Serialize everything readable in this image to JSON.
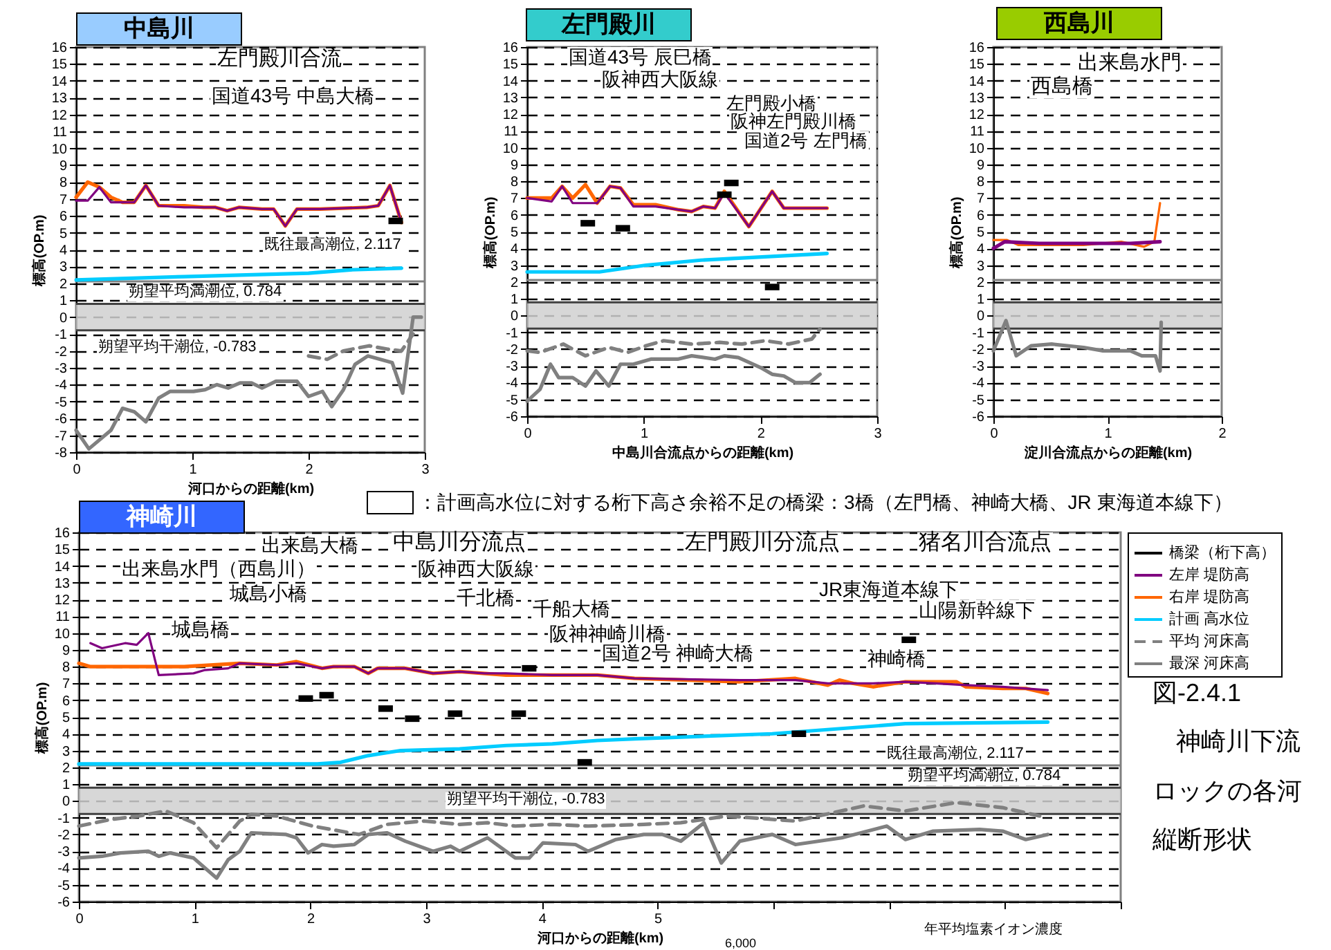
{
  "chart_data": [
    {
      "type": "line",
      "title": "中島川",
      "xlabel": "河口からの距離(km)",
      "ylabel": "標高(OP.m)",
      "xlim": [
        0,
        3
      ],
      "xticks": [
        0,
        1,
        2,
        3
      ],
      "ylim": [
        -8,
        16
      ],
      "yticks": [
        -8,
        -7,
        -6,
        -5,
        -4,
        -3,
        -2,
        -1,
        0,
        1,
        2,
        3,
        4,
        5,
        6,
        7,
        8,
        9,
        10,
        11,
        12,
        13,
        14,
        15,
        16
      ],
      "grid": "y",
      "series": [
        {
          "type": "scatter",
          "color": "#000000",
          "x": [
            2.75
          ],
          "values": [
            5.7
          ]
        },
        {
          "color": "#800080",
          "x": [
            0,
            0.1,
            0.2,
            0.3,
            0.4,
            0.5,
            0.6,
            0.71,
            0.93,
            1.1,
            1.2,
            1.3,
            1.4,
            1.6,
            1.7,
            1.8,
            1.9,
            2.1,
            2.5,
            2.6,
            2.7,
            2.8
          ],
          "values": [
            6.9,
            6.9,
            7.7,
            6.8,
            6.8,
            6.8,
            7.8,
            6.6,
            6.5,
            6.5,
            6.5,
            6.3,
            6.5,
            6.4,
            6.4,
            5.4,
            6.4,
            6.4,
            6.5,
            6.6,
            7.8,
            5.6
          ]
        },
        {
          "color": "#ff6600",
          "x": [
            0,
            0.1,
            0.2,
            0.3,
            0.4,
            0.5,
            0.6,
            0.71,
            0.93,
            1.1,
            1.2,
            1.3,
            1.4,
            1.6,
            1.7,
            1.8,
            1.9,
            2.1,
            2.5,
            2.6,
            2.7,
            2.8
          ],
          "values": [
            7.1,
            8.0,
            7.7,
            7.1,
            6.8,
            6.8,
            7.8,
            6.6,
            6.6,
            6.5,
            6.5,
            6.3,
            6.5,
            6.4,
            6.4,
            5.4,
            6.4,
            6.4,
            6.5,
            6.6,
            7.8,
            5.6
          ]
        },
        {
          "color": "#00ccff",
          "x": [
            0,
            0.93,
            2.0,
            2.36,
            2.8
          ],
          "values": [
            2.2,
            2.4,
            2.6,
            2.8,
            2.9
          ]
        },
        {
          "color": "#808080",
          "line_style": "dashed",
          "x": [
            2.0,
            2.16,
            2.3,
            2.52,
            2.68,
            2.8,
            2.9
          ],
          "values": [
            -2.3,
            -2.5,
            -2.0,
            -1.7,
            -1.9,
            -2.0,
            -1.0
          ]
        },
        {
          "color": "#808080",
          "x": [
            0,
            0.11,
            0.3,
            0.4,
            0.5,
            0.6,
            0.71,
            0.81,
            1.01,
            1.11,
            1.21,
            1.31,
            1.41,
            1.51,
            1.6,
            1.72,
            1.9,
            2.0,
            2.12,
            2.2,
            2.3,
            2.4,
            2.51,
            2.72,
            2.81,
            2.9,
            2.97
          ],
          "values": [
            -6.7,
            -7.8,
            -6.7,
            -5.4,
            -5.6,
            -6.2,
            -4.8,
            -4.4,
            -4.4,
            -4.3,
            -4.0,
            -4.2,
            -3.9,
            -3.9,
            -4.2,
            -3.8,
            -3.8,
            -4.7,
            -4.4,
            -5.3,
            -4.3,
            -2.8,
            -2.3,
            -2.7,
            -4.5,
            0.0,
            0.0
          ]
        }
      ],
      "ref_lines": [
        {
          "axis": "y",
          "value": 2.117,
          "label": "既往最高潮位, 2.117",
          "color": "#808080"
        },
        {
          "axis": "y",
          "value": 0.784,
          "label": "朔望平均満潮位, 0.784",
          "color": "#404040"
        },
        {
          "axis": "y",
          "value": -0.783,
          "label": "朔望平均干潮位, -0.783",
          "color": "#404040"
        }
      ],
      "bands": [
        {
          "axis": "y",
          "from": -0.783,
          "to": 0.784,
          "color": "#d0d0d0"
        }
      ],
      "annotations": [
        "左門殿川合流",
        "国道43号 中島大橋"
      ]
    },
    {
      "type": "line",
      "title": "左門殿川",
      "xlabel": "中島川合流点からの距離(km)",
      "ylabel": "標高(OP.m)",
      "xlim": [
        0,
        3
      ],
      "xticks": [
        0,
        1,
        2,
        3
      ],
      "ylim": [
        -6,
        16
      ],
      "yticks": [
        -6,
        -5,
        -4,
        -3,
        -2,
        -1,
        0,
        1,
        2,
        3,
        4,
        5,
        6,
        7,
        8,
        9,
        10,
        11,
        12,
        13,
        14,
        15,
        16
      ],
      "grid": "y",
      "series": [
        {
          "type": "scatter",
          "color": "#000000",
          "x": [
            0.52,
            0.82,
            1.69,
            1.75,
            2.1
          ],
          "values": [
            5.5,
            5.2,
            7.2,
            7.9,
            1.7
          ]
        },
        {
          "color": "#800080",
          "x": [
            0,
            0.21,
            0.3,
            0.39,
            0.5,
            0.6,
            0.71,
            0.8,
            0.91,
            1.1,
            1.3,
            1.41,
            1.51,
            1.61,
            1.69,
            1.9,
            2.1,
            2.2,
            2.57
          ],
          "values": [
            7.0,
            6.8,
            7.7,
            6.7,
            6.7,
            6.7,
            7.7,
            7.6,
            6.5,
            6.5,
            6.3,
            6.2,
            6.5,
            6.4,
            7.3,
            5.3,
            7.4,
            6.4,
            6.4
          ]
        },
        {
          "color": "#ff6600",
          "x": [
            0,
            0.21,
            0.3,
            0.39,
            0.5,
            0.6,
            0.71,
            0.8,
            0.91,
            1.1,
            1.3,
            1.41,
            1.51,
            1.61,
            1.69,
            1.9,
            2.1,
            2.2,
            2.57
          ],
          "values": [
            7.0,
            7.0,
            7.7,
            7.0,
            7.8,
            6.7,
            7.7,
            7.6,
            6.6,
            6.6,
            6.3,
            6.2,
            6.5,
            6.4,
            7.4,
            5.3,
            7.4,
            6.4,
            6.4
          ]
        },
        {
          "color": "#00ccff",
          "x": [
            0,
            0.62,
            1.02,
            1.49,
            2.04,
            2.57
          ],
          "values": [
            2.6,
            2.6,
            3.0,
            3.3,
            3.5,
            3.7
          ]
        },
        {
          "color": "#808080",
          "line_style": "dashed",
          "x": [
            0,
            0.11,
            0.31,
            0.5,
            0.7,
            0.86,
            1.02,
            1.17,
            1.41,
            1.65,
            1.84,
            2.04,
            2.24,
            2.44,
            2.51
          ],
          "values": [
            -2.1,
            -2.2,
            -1.7,
            -2.4,
            -1.9,
            -2.2,
            -1.8,
            -1.5,
            -1.7,
            -1.6,
            -1.7,
            -1.5,
            -1.7,
            -1.4,
            -0.8
          ]
        },
        {
          "color": "#808080",
          "x": [
            0,
            0.11,
            0.2,
            0.27,
            0.39,
            0.5,
            0.59,
            0.7,
            0.8,
            0.91,
            1.06,
            1.29,
            1.41,
            1.61,
            1.69,
            1.81,
            2.0,
            2.1,
            2.2,
            2.3,
            2.42,
            2.51
          ],
          "values": [
            -5.1,
            -4.4,
            -2.9,
            -3.7,
            -3.7,
            -4.2,
            -3.3,
            -4.2,
            -2.9,
            -2.9,
            -2.6,
            -2.6,
            -2.4,
            -2.6,
            -2.4,
            -2.5,
            -3.1,
            -3.5,
            -3.6,
            -4.0,
            -4.0,
            -3.5
          ]
        }
      ],
      "ref_lines": [
        {
          "axis": "y",
          "value": 2.117,
          "color": "#808080"
        },
        {
          "axis": "y",
          "value": 0.784,
          "color": "#404040"
        },
        {
          "axis": "y",
          "value": -0.783,
          "color": "#404040"
        }
      ],
      "bands": [
        {
          "axis": "y",
          "from": -0.783,
          "to": 0.784,
          "color": "#d0d0d0"
        }
      ],
      "annotations": [
        "国道43号 辰巳橋",
        "阪神西大阪線",
        "左門殿小橋",
        "阪神左門殿川橋",
        "国道2号 左門橋"
      ]
    },
    {
      "type": "line",
      "title": "西島川",
      "xlabel": "淀川合流点からの距離(km)",
      "ylabel": "標高(OP.m)",
      "xlim": [
        0,
        2
      ],
      "xticks": [
        0,
        1,
        2
      ],
      "ylim": [
        -6,
        16
      ],
      "yticks": [
        -6,
        -5,
        -4,
        -3,
        -2,
        -1,
        0,
        1,
        2,
        3,
        4,
        5,
        6,
        7,
        8,
        9,
        10,
        11,
        12,
        13,
        14,
        15,
        16
      ],
      "grid": "y",
      "series": [
        {
          "color": "#800080",
          "x": [
            0,
            0.1,
            0.4,
            0.8,
            1.2,
            1.46
          ],
          "values": [
            4.0,
            4.4,
            4.3,
            4.3,
            4.3,
            4.4
          ]
        },
        {
          "color": "#ff6600",
          "x": [
            0,
            0.12,
            0.22,
            0.79,
            1.12,
            1.32,
            1.41,
            1.46
          ],
          "values": [
            4.5,
            4.5,
            4.2,
            4.2,
            4.4,
            4.1,
            4.4,
            6.7
          ]
        },
        {
          "color": "#808080",
          "x": [
            0,
            0.11,
            0.2,
            0.33,
            0.51,
            0.79,
            0.96,
            1.2,
            1.3,
            1.42,
            1.46,
            1.47
          ],
          "values": [
            -2.1,
            -0.3,
            -2.4,
            -1.8,
            -1.7,
            -1.9,
            -2.1,
            -2.1,
            -2.4,
            -2.4,
            -3.3,
            -0.4
          ]
        }
      ],
      "ref_lines": [
        {
          "axis": "y",
          "value": 2.117,
          "color": "#808080"
        },
        {
          "axis": "y",
          "value": 0.784,
          "color": "#404040"
        },
        {
          "axis": "y",
          "value": -0.783,
          "color": "#404040"
        }
      ],
      "bands": [
        {
          "axis": "y",
          "from": -0.783,
          "to": 0.784,
          "color": "#d0d0d0"
        }
      ],
      "annotations": [
        "出来島水門",
        "西島橋"
      ]
    },
    {
      "type": "line",
      "title": "神崎川",
      "xlabel": "河口からの距離(km)",
      "ylabel": "標高(OP.m)",
      "xlim": [
        0,
        9
      ],
      "xticks": [
        0,
        1,
        2,
        3,
        4,
        5,
        {
          "value": 6,
          "label": null
        },
        {
          "value": 7,
          "label": null
        },
        {
          "value": 8,
          "label": null
        },
        {
          "value": 9,
          "label": null
        }
      ],
      "ylim": [
        -6,
        16
      ],
      "yticks": [
        -6,
        -5,
        -4,
        -3,
        -2,
        -1,
        0,
        1,
        2,
        3,
        4,
        5,
        6,
        7,
        8,
        9,
        10,
        11,
        12,
        13,
        14,
        15,
        16
      ],
      "grid": "y",
      "legend": "right",
      "series": [
        {
          "type": "scatter",
          "name": "橋梁（桁下高）",
          "color": "#000000",
          "x": [
            1.96,
            2.14,
            2.65,
            2.88,
            3.25,
            3.8,
            3.89,
            4.37,
            6.22,
            7.17
          ],
          "values": [
            6.1,
            6.3,
            5.5,
            4.9,
            5.2,
            5.2,
            7.9,
            2.3,
            4.0,
            9.6
          ]
        },
        {
          "name": "左岸 堤防高",
          "color": "#800080",
          "x": [
            0.1,
            0.2,
            0.4,
            0.5,
            0.6,
            0.69,
            0.99,
            1.09,
            1.29,
            1.39,
            1.71,
            1.88,
            2.1,
            2.2,
            2.38,
            2.5,
            2.58,
            2.82,
            3.06,
            3.29,
            3.5,
            3.69,
            4.09,
            4.48,
            4.8,
            5.71,
            6.19,
            6.47,
            6.86,
            7.14,
            7.4,
            7.66,
            7.98,
            8.37
          ],
          "values": [
            9.4,
            9.1,
            9.4,
            9.3,
            10.0,
            7.5,
            7.6,
            7.8,
            7.9,
            8.2,
            8.1,
            8.2,
            7.9,
            8.0,
            8.0,
            7.6,
            7.9,
            7.9,
            7.6,
            7.7,
            7.6,
            7.6,
            7.5,
            7.5,
            7.3,
            7.2,
            7.2,
            7.0,
            7.0,
            7.1,
            7.0,
            6.9,
            6.8,
            6.6
          ]
        },
        {
          "name": "右岸 堤防高",
          "color": "#ff6600",
          "x": [
            0,
            0.1,
            0.91,
            1.39,
            1.71,
            1.88,
            2.1,
            2.2,
            2.38,
            2.5,
            2.58,
            2.82,
            3.06,
            3.29,
            3.69,
            4.09,
            4.48,
            4.8,
            5.71,
            6.19,
            6.47,
            6.57,
            6.69,
            6.86,
            7.14,
            7.58,
            7.66,
            7.98,
            8.18,
            8.37
          ],
          "values": [
            8.2,
            8.0,
            8.0,
            8.2,
            8.1,
            8.3,
            7.9,
            8.0,
            8.0,
            7.6,
            7.9,
            7.9,
            7.6,
            7.7,
            7.5,
            7.5,
            7.5,
            7.3,
            7.1,
            7.3,
            6.9,
            7.2,
            7.0,
            6.8,
            7.1,
            7.1,
            6.8,
            6.7,
            6.7,
            6.4
          ]
        },
        {
          "name": "計画 高水位",
          "color": "#00ccff",
          "x": [
            0,
            2.06,
            2.26,
            2.5,
            2.78,
            3.29,
            3.69,
            4.09,
            4.48,
            4.8,
            5.99,
            7.14,
            8.37
          ],
          "values": [
            2.2,
            2.2,
            2.3,
            2.7,
            3.0,
            3.1,
            3.3,
            3.4,
            3.6,
            3.7,
            4.0,
            4.6,
            4.7
          ]
        },
        {
          "name": "平均 河床高",
          "color": "#808080",
          "line_style": "dashed",
          "x": [
            0,
            0.28,
            0.52,
            0.75,
            0.99,
            1.19,
            1.39,
            1.49,
            1.71,
            2.02,
            2.42,
            2.66,
            2.98,
            3.29,
            3.53,
            3.77,
            4.09,
            4.4,
            4.88,
            5.2,
            5.6,
            6.19,
            6.78,
            7.14,
            7.58,
            7.98,
            8.3
          ],
          "values": [
            -1.5,
            -1.1,
            -0.9,
            -0.6,
            -1.3,
            -2.8,
            -1.2,
            -0.8,
            -0.9,
            -1.5,
            -2.0,
            -1.4,
            -1.2,
            -1.4,
            -1.3,
            -1.5,
            -1.4,
            -1.5,
            -1.4,
            -1.3,
            -0.9,
            -1.2,
            -0.3,
            -0.6,
            -0.1,
            -0.4,
            -0.9
          ]
        },
        {
          "name": "最深 河床高",
          "color": "#808080",
          "x": [
            0,
            0.2,
            0.36,
            0.6,
            0.69,
            0.79,
            0.99,
            1.19,
            1.29,
            1.39,
            1.49,
            1.79,
            1.88,
            1.98,
            2.1,
            2.2,
            2.38,
            2.5,
            2.66,
            2.82,
            3.06,
            3.21,
            3.29,
            3.53,
            3.77,
            3.89,
            4.01,
            4.29,
            4.4,
            4.64,
            4.88,
            5.04,
            5.2,
            5.4,
            5.55,
            5.71,
            5.99,
            6.19,
            6.59,
            6.98,
            7.14,
            7.38,
            7.78,
            7.98,
            8.18,
            8.37
          ],
          "values": [
            -3.4,
            -3.3,
            -3.1,
            -3.0,
            -3.3,
            -3.1,
            -3.4,
            -4.6,
            -3.5,
            -3.0,
            -1.9,
            -2.0,
            -2.2,
            -3.1,
            -2.6,
            -2.7,
            -2.6,
            -2.0,
            -1.9,
            -2.4,
            -3.0,
            -2.7,
            -3.0,
            -2.2,
            -3.4,
            -3.4,
            -2.5,
            -2.6,
            -3.0,
            -2.3,
            -2.0,
            -2.0,
            -2.4,
            -1.3,
            -3.7,
            -2.4,
            -2.0,
            -2.6,
            -2.2,
            -1.5,
            -2.3,
            -1.8,
            -1.7,
            -1.8,
            -2.3,
            -2.0
          ]
        }
      ],
      "ref_lines": [
        {
          "axis": "y",
          "value": 2.117,
          "label": "既往最高潮位, 2.117",
          "color": "#808080"
        },
        {
          "axis": "y",
          "value": 0.784,
          "label": "朔望平均満潮位, 0.784",
          "color": "#404040"
        },
        {
          "axis": "y",
          "value": -0.783,
          "label": "朔望平均干潮位, -0.783",
          "color": "#404040"
        }
      ],
      "bands": [
        {
          "axis": "y",
          "from": -0.783,
          "to": 0.784,
          "color": "#d0d0d0"
        }
      ],
      "annotations": [
        "：計画高水位に対する桁下高さ余裕不足の橋梁：3橋（左門橋、神崎大橋、JR 東海道本線下）",
        "図-2.4.1",
        "神崎川下流",
        "ロックの各河",
        "縦断形状",
        "年平均塩素イオン濃度",
        "6,000",
        "出来島大橋",
        "中島川分流点",
        "出来島水門（西島川）",
        "阪神西大阪線",
        "城島小橋",
        "千北橋",
        "千船大橋",
        "城島橋",
        "阪神神崎川橋",
        "国道2号 神崎大橋",
        "左門殿川分流点",
        "猪名川合流点",
        "JR東海道本線下",
        "山陽新幹線下",
        "神崎橋"
      ]
    }
  ]
}
